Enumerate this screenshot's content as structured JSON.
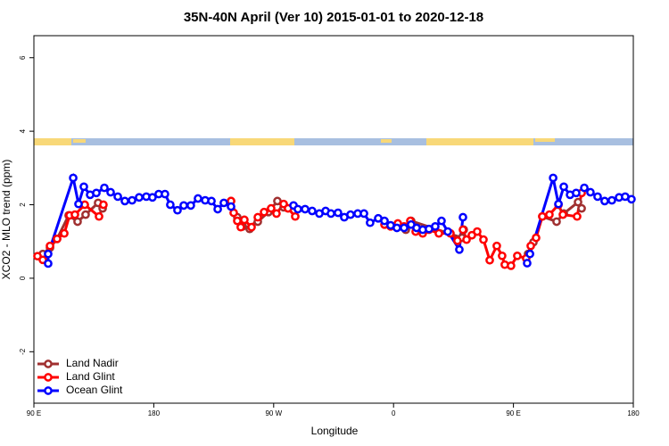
{
  "chart_data": {
    "type": "line",
    "title": "35N-40N April (Ver 10)   2015-01-01 to 2020-12-18",
    "x_label": "Longitude",
    "y_label": "XCO2 - MLO trend (ppm)",
    "xlim": [
      90,
      540
    ],
    "ylim": [
      -3.4,
      6.6
    ],
    "xticks": [
      {
        "value": 90,
        "label": "90 E"
      },
      180,
      {
        "value": 270,
        "label": "90 W"
      },
      {
        "value": 360,
        "label": "0"
      },
      {
        "value": 450,
        "label": "90 E"
      },
      {
        "value": 540,
        "label": "180"
      }
    ],
    "yticks": [
      -2,
      0,
      2,
      4,
      6
    ],
    "legend": "bottomleft",
    "series": [
      {
        "name": "Land Nadir",
        "color": "#a03030",
        "x": [
          96.7,
          102.1,
          107.4,
          116.1,
          122.8,
          128.8,
          138.2,
          141.6,
          null,
          238,
          242.7,
          246.7,
          252,
          258.1,
          266.1,
          272.8,
          277.5,
          null,
          369.2,
          373.2,
          411.4,
          412.7,
          null,
          461,
          465,
          471.7,
          482.4,
          487.8,
          498.5,
          501.2
        ],
        "values": [
          0.66,
          0.83,
          1.07,
          1.71,
          1.54,
          1.73,
          2.05,
          1.9,
          null,
          2.1,
          1.66,
          1.41,
          1.34,
          1.54,
          1.8,
          2.1,
          1.93,
          null,
          1.32,
          1.56,
          1.1,
          1.32,
          null,
          0.66,
          0.98,
          1.68,
          1.54,
          1.76,
          2.07,
          1.9
        ]
      },
      {
        "name": "Land Glint",
        "color": "#ff0000",
        "x": [
          92.7,
          96.7,
          102.1,
          107.4,
          112.8,
          116.8,
          120.8,
          128.2,
          138.9,
          142.2,
          null,
          238,
          240,
          242.7,
          245.3,
          248,
          253.4,
          258.1,
          262.8,
          268.1,
          272.1,
          277.5,
          280.8,
          286.2,
          null,
          353.2,
          357.8,
          363.2,
          367.9,
          372.6,
          376.6,
          381.9,
          386.6,
          394,
          402.7,
          408,
          412.1,
          414.8,
          418.8,
          422.8,
          427.5,
          432.2,
          437.5,
          441.5,
          443.5,
          448.2,
          452.9,
          459.6,
          463,
          467,
          471.7,
          477,
          483.8,
          487.1,
          497.8,
          501.2
        ],
        "values": [
          0.6,
          0.5,
          0.88,
          1.07,
          1.22,
          1.71,
          1.73,
          2.0,
          1.68,
          2.0,
          null,
          2.1,
          1.78,
          1.56,
          1.39,
          1.59,
          1.39,
          1.66,
          1.8,
          1.9,
          1.76,
          2.02,
          1.9,
          1.68,
          null,
          1.46,
          1.41,
          1.49,
          1.41,
          1.56,
          1.27,
          1.22,
          1.32,
          1.22,
          1.22,
          1.02,
          1.32,
          1.05,
          1.17,
          1.27,
          1.05,
          0.49,
          0.88,
          0.61,
          0.37,
          0.34,
          0.61,
          0.54,
          0.88,
          1.1,
          1.68,
          1.73,
          2.0,
          1.73,
          1.68,
          2.32
        ]
      },
      {
        "name": "Ocean Glint",
        "color": "#0000ff",
        "x": [
          100.7,
          100.7,
          119.5,
          123.5,
          127.5,
          132.2,
          136.9,
          142.9,
          147.6,
          153,
          158.3,
          163.7,
          169,
          174.4,
          179,
          183.7,
          188.4,
          192.4,
          197.8,
          202.5,
          207.8,
          213.2,
          218.6,
          223.3,
          228,
          232.6,
          238,
          null,
          284.9,
          288.2,
          293.6,
          298.9,
          304.3,
          309,
          313,
          318.3,
          323,
          327.7,
          333.1,
          337.8,
          342.4,
          348.5,
          353.2,
          357.8,
          362.5,
          367.9,
          373.2,
          377.3,
          381.9,
          386.6,
          391.3,
          396,
          400.7,
          409.4,
          412.1,
          null,
          460.3,
          462.4,
          479.8,
          483.8,
          487.8,
          492.5,
          497.1,
          503.2,
          507.8,
          513.2,
          518.5,
          523.9,
          529.3,
          533.9,
          538.6
        ],
        "values": [
          0.4,
          0.66,
          2.73,
          2.02,
          2.49,
          2.27,
          2.32,
          2.46,
          2.34,
          2.22,
          2.1,
          2.12,
          2.2,
          2.22,
          2.2,
          2.29,
          2.29,
          2.0,
          1.85,
          1.98,
          1.98,
          2.17,
          2.12,
          2.1,
          1.88,
          2.05,
          1.95,
          null,
          1.98,
          1.88,
          1.88,
          1.83,
          1.76,
          1.83,
          1.76,
          1.78,
          1.66,
          1.73,
          1.76,
          1.76,
          1.51,
          1.63,
          1.56,
          1.44,
          1.37,
          1.37,
          1.46,
          1.37,
          1.32,
          1.34,
          1.41,
          1.56,
          1.27,
          0.78,
          1.66,
          null,
          0.41,
          0.66,
          2.73,
          2.02,
          2.49,
          2.27,
          2.32,
          2.46,
          2.34,
          2.22,
          2.1,
          2.12,
          2.2,
          2.22,
          2.15
        ]
      }
    ]
  }
}
